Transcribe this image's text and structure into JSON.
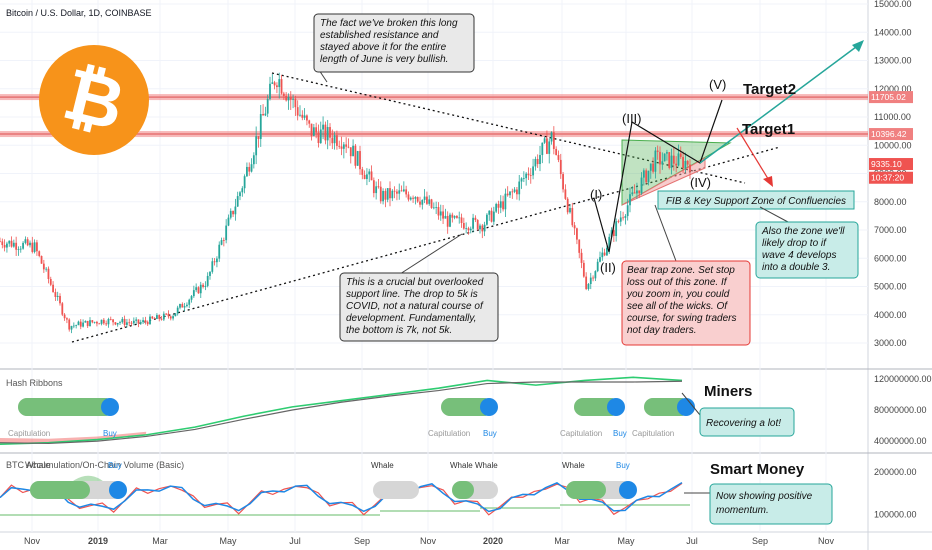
{
  "header": {
    "title": "Bitcoin / U.S. Dollar, 1D, COINBASE"
  },
  "colors": {
    "bull": "#26a69a",
    "bear": "#ef5350",
    "resistance": "#f08080",
    "note_grey": "#e9e9e9",
    "note_red": "#f9cfcf",
    "note_teal": "#c8ece8",
    "btc_orange": "#f7931a"
  },
  "chart_data": [
    {
      "type": "candlestick",
      "title": "Bitcoin / U.S. Dollar, 1D, COINBASE",
      "y_ticks": [
        "15000.00",
        "14000.00",
        "13000.00",
        "12000.00",
        "11000.00",
        "10000.00",
        "9000.00",
        "8000.00",
        "7000.00",
        "6000.00",
        "5000.00",
        "4000.00",
        "3000.00"
      ],
      "x_ticks": [
        "Nov",
        "2019",
        "Mar",
        "May",
        "Jul",
        "Sep",
        "Nov",
        "2020",
        "Mar",
        "May",
        "Jul",
        "Sep",
        "Nov"
      ],
      "price_tags": [
        {
          "label": "11705.02",
          "value": 11705.02,
          "color": "#f08080"
        },
        {
          "label": "10396.42",
          "value": 10396.42,
          "color": "#f08080"
        },
        {
          "label": "9335.10",
          "value": 9335.1,
          "color": "#ef5350"
        },
        {
          "label": "10:37:20",
          "value": 8850,
          "color": "#ef5350"
        }
      ],
      "resistance_levels": [
        11705.02,
        10396.42
      ],
      "price_path": [
        {
          "x": "Oct",
          "y": 6600
        },
        {
          "x": "Nov",
          "y": 6400
        },
        {
          "x": "Dec",
          "y": 3600
        },
        {
          "x": "2019",
          "y": 3800
        },
        {
          "x": "Feb",
          "y": 3700
        },
        {
          "x": "Mar",
          "y": 4000
        },
        {
          "x": "Apr",
          "y": 5200
        },
        {
          "x": "May",
          "y": 8500
        },
        {
          "x": "Jun",
          "y": 12500
        },
        {
          "x": "Jul",
          "y": 10500
        },
        {
          "x": "Aug",
          "y": 10200
        },
        {
          "x": "Sep",
          "y": 8200
        },
        {
          "x": "Oct",
          "y": 8300
        },
        {
          "x": "Nov",
          "y": 7300
        },
        {
          "x": "Dec",
          "y": 7200
        },
        {
          "x": "2020",
          "y": 8500
        },
        {
          "x": "Feb",
          "y": 10300
        },
        {
          "x": "Mar",
          "y": 5000
        },
        {
          "x": "Apr",
          "y": 7500
        },
        {
          "x": "May",
          "y": 9500
        },
        {
          "x": "Jun",
          "y": 9400
        }
      ],
      "wave_labels": [
        "(I)",
        "(II)",
        "(III)",
        "(IV)",
        "(V)"
      ],
      "target_labels": [
        "Target1",
        "Target2"
      ],
      "zone_label": "FIB & Key Support Zone of Confluencies",
      "annotations": [
        "The fact we've broken this long established resistance and stayed above it for the entire length of June is very bullish.",
        "This is a crucial but overlooked support line. The drop to 5k is COVID, not a natural course of development. Fundamentally, the bottom is 7k, not 5k.",
        "Bear trap zone. Set stop loss out of this zone. If you zoom in, you could see all of the wicks. Of course, for swing traders not day traders.",
        "Also the zone we'll likely drop to if wave 4 develops into a double 3."
      ]
    },
    {
      "type": "line",
      "title": "Hash Ribbons",
      "y_ticks": [
        "120000000.00",
        "80000000.00",
        "40000000.00"
      ],
      "signal_labels": [
        "Capitulation",
        "Buy",
        "Capitulation",
        "Buy",
        "Capitulation",
        "Buy",
        "Capitulation"
      ],
      "side_label": "Miners",
      "note": "Recovering a lot!",
      "series": [
        {
          "name": "",
          "values": [
            36000000,
            38000000,
            42000000,
            48000000,
            58000000,
            72000000,
            84000000,
            92000000,
            100000000,
            108000000,
            118000000,
            112000000,
            118000000,
            122000000,
            118000000
          ]
        },
        {
          "name": "",
          "values": [
            38000000,
            37000000,
            40000000,
            46000000,
            55000000,
            68000000,
            80000000,
            90000000,
            98000000,
            105000000,
            114000000,
            116000000,
            116000000,
            116000000,
            117000000
          ]
        }
      ]
    },
    {
      "type": "line",
      "title": "BTC Accumulation/On-Chain Volume (Basic)",
      "title_overlap_label": "Whale",
      "y_ticks": [
        "200000.00",
        "100000.00"
      ],
      "signal_labels": [
        "Buy",
        "Whale",
        "Whale",
        "Whale",
        "Whale",
        "Buy"
      ],
      "side_label": "Smart Money",
      "note": "Now showing positive momentum."
    }
  ]
}
